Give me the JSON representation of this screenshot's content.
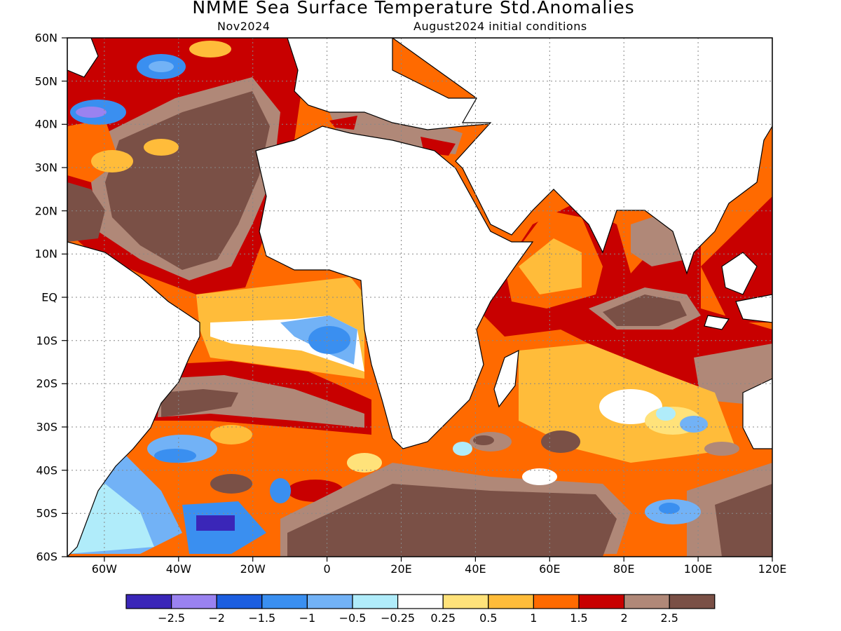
{
  "title": "NMME Sea Surface Temperature Std.Anomalies",
  "subtitle_left": "Nov2024",
  "subtitle_right": "August2024 initial conditions",
  "lat_labels": [
    "60N",
    "50N",
    "40N",
    "30N",
    "20N",
    "10N",
    "EQ",
    "10S",
    "20S",
    "30S",
    "40S",
    "50S",
    "60S"
  ],
  "lon_labels": [
    "60W",
    "40W",
    "20W",
    "0",
    "20E",
    "40E",
    "60E",
    "80E",
    "100E",
    "120E"
  ],
  "colorbar": {
    "colors": [
      "#3a26b8",
      "#9a82f0",
      "#1c5ee0",
      "#3a8ff0",
      "#72b2f6",
      "#b0ecfa",
      "#ffffff",
      "#ffe27a",
      "#ffbc3a",
      "#ff6a00",
      "#c80000",
      "#b08878",
      "#7a5046"
    ],
    "labels": [
      "−2.5",
      "−2",
      "−1.5",
      "−1",
      "−0.5",
      "−0.25",
      "0.25",
      "0.5",
      "1",
      "1.5",
      "2",
      "2.5"
    ]
  }
}
